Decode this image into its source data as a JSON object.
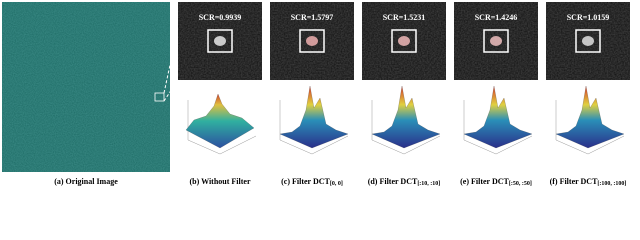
{
  "figure": {
    "original_caption": "(a) Original Image",
    "panels": [
      {
        "scr": "SCR=0.9939",
        "caption": "(b) Without Filter"
      },
      {
        "scr": "SCR=1.5797",
        "caption": "(c) Filter DCT",
        "sub": "[0, 0]"
      },
      {
        "scr": "SCR=1.5231",
        "caption": "(d) Filter DCT",
        "sub": "[:10, :10]"
      },
      {
        "scr": "SCR=1.4246",
        "caption": "(e) Filter DCT",
        "sub": "[:50, :50]"
      },
      {
        "scr": "SCR=1.0159",
        "caption": "(f) Filter DCT",
        "sub": "[:100, :100]"
      }
    ]
  }
}
